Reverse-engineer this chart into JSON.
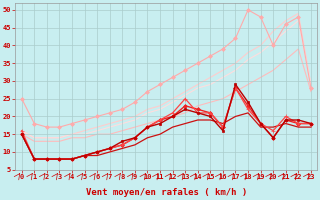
{
  "xlabel": "Vent moyen/en rafales ( km/h )",
  "background_color": "#c8eef0",
  "grid_color": "#aacccc",
  "xlim": [
    -0.5,
    23.5
  ],
  "ylim": [
    5,
    52
  ],
  "yticks": [
    5,
    10,
    15,
    20,
    25,
    30,
    35,
    40,
    45,
    50
  ],
  "xticks": [
    0,
    1,
    2,
    3,
    4,
    5,
    6,
    7,
    8,
    9,
    10,
    11,
    12,
    13,
    14,
    15,
    16,
    17,
    18,
    19,
    20,
    21,
    22,
    23
  ],
  "series": [
    {
      "x": [
        0,
        1,
        2,
        3,
        4,
        5,
        6,
        7,
        8,
        9,
        10,
        11,
        12,
        13,
        14,
        15,
        16,
        17,
        18,
        19,
        20,
        21,
        22,
        23
      ],
      "y": [
        25,
        18,
        17,
        17,
        18,
        19,
        20,
        21,
        22,
        24,
        27,
        29,
        31,
        33,
        35,
        37,
        39,
        42,
        50,
        48,
        40,
        46,
        48,
        28
      ],
      "color": "#ffaaaa",
      "linewidth": 0.8,
      "marker": "D",
      "markersize": 2.0,
      "zorder": 2
    },
    {
      "x": [
        0,
        1,
        2,
        3,
        4,
        5,
        6,
        7,
        8,
        9,
        10,
        11,
        12,
        13,
        14,
        15,
        16,
        17,
        18,
        19,
        20,
        21,
        22,
        23
      ],
      "y": [
        16,
        14,
        14,
        14,
        15,
        16,
        17,
        18,
        19,
        20,
        22,
        23,
        25,
        27,
        29,
        31,
        33,
        35,
        38,
        40,
        44,
        47,
        49,
        29
      ],
      "color": "#ffcccc",
      "linewidth": 0.8,
      "marker": null,
      "markersize": 0,
      "zorder": 1
    },
    {
      "x": [
        0,
        1,
        2,
        3,
        4,
        5,
        6,
        7,
        8,
        9,
        10,
        11,
        12,
        13,
        14,
        15,
        16,
        17,
        18,
        19,
        20,
        21,
        22,
        23
      ],
      "y": [
        16,
        14,
        14,
        14,
        15,
        15,
        16,
        17,
        18,
        19,
        21,
        22,
        24,
        26,
        28,
        29,
        31,
        33,
        36,
        38,
        41,
        44,
        47,
        29
      ],
      "color": "#ffdddd",
      "linewidth": 0.8,
      "marker": null,
      "markersize": 0,
      "zorder": 1
    },
    {
      "x": [
        0,
        1,
        2,
        3,
        4,
        5,
        6,
        7,
        8,
        9,
        10,
        11,
        12,
        13,
        14,
        15,
        16,
        17,
        18,
        19,
        20,
        21,
        22,
        23
      ],
      "y": [
        15,
        8,
        8,
        8,
        8,
        9,
        10,
        11,
        13,
        14,
        17,
        18,
        20,
        22,
        21,
        20,
        16,
        29,
        24,
        18,
        14,
        19,
        19,
        18
      ],
      "color": "#bb0000",
      "linewidth": 1.0,
      "marker": "s",
      "markersize": 2.0,
      "zorder": 4
    },
    {
      "x": [
        0,
        1,
        2,
        3,
        4,
        5,
        6,
        7,
        8,
        9,
        10,
        11,
        12,
        13,
        14,
        15,
        16,
        17,
        18,
        19,
        20,
        21,
        22,
        23
      ],
      "y": [
        15,
        8,
        8,
        8,
        8,
        9,
        10,
        11,
        12,
        14,
        17,
        19,
        20,
        23,
        22,
        21,
        17,
        28,
        23,
        18,
        14,
        19,
        18,
        18
      ],
      "color": "#ee2222",
      "linewidth": 1.0,
      "marker": "D",
      "markersize": 2.0,
      "zorder": 3
    },
    {
      "x": [
        0,
        1,
        2,
        3,
        4,
        5,
        6,
        7,
        8,
        9,
        10,
        11,
        12,
        13,
        14,
        15,
        16,
        17,
        18,
        19,
        20,
        21,
        22,
        23
      ],
      "y": [
        16,
        8,
        8,
        8,
        8,
        9,
        10,
        11,
        12,
        14,
        17,
        19,
        21,
        25,
        21,
        21,
        17,
        28,
        22,
        18,
        16,
        20,
        18,
        18
      ],
      "color": "#ff4444",
      "linewidth": 0.9,
      "marker": "+",
      "markersize": 3.0,
      "zorder": 3
    },
    {
      "x": [
        0,
        1,
        2,
        3,
        4,
        5,
        6,
        7,
        8,
        9,
        10,
        11,
        12,
        13,
        14,
        15,
        16,
        17,
        18,
        19,
        20,
        21,
        22,
        23
      ],
      "y": [
        15,
        8,
        8,
        8,
        8,
        9,
        9,
        10,
        11,
        12,
        14,
        15,
        17,
        18,
        19,
        19,
        18,
        20,
        21,
        17,
        17,
        18,
        17,
        17
      ],
      "color": "#cc1111",
      "linewidth": 0.9,
      "marker": null,
      "markersize": 0,
      "zorder": 2
    },
    {
      "x": [
        0,
        1,
        2,
        3,
        4,
        5,
        6,
        7,
        8,
        9,
        10,
        11,
        12,
        13,
        14,
        15,
        16,
        17,
        18,
        19,
        20,
        21,
        22,
        23
      ],
      "y": [
        15,
        13,
        13,
        13,
        14,
        14,
        15,
        15,
        16,
        17,
        18,
        19,
        20,
        21,
        23,
        24,
        25,
        27,
        29,
        31,
        33,
        36,
        39,
        27
      ],
      "color": "#ffbbbb",
      "linewidth": 0.8,
      "marker": null,
      "markersize": 0,
      "zorder": 1
    }
  ],
  "arrow_color": "#cc0000",
  "xlabel_color": "#cc0000",
  "xlabel_fontsize": 6.5,
  "tick_fontsize": 5.0,
  "tick_color": "#cc0000"
}
